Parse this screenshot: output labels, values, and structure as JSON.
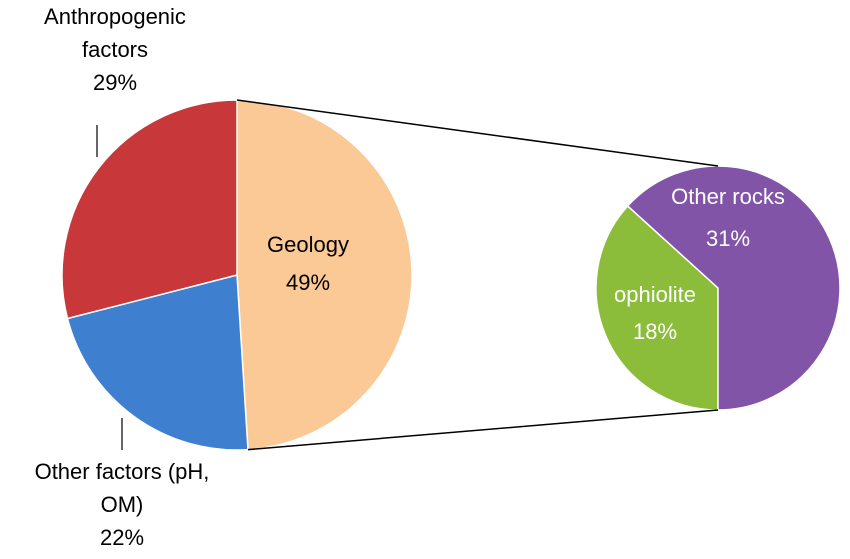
{
  "chart_data": {
    "type": "pie-of-pie",
    "categories": [
      "Geology",
      "Other factors (pH, OM)",
      "Anthropogenic factors"
    ],
    "values": [
      49,
      22,
      29
    ],
    "value_labels": [
      "49%",
      "22%",
      "29%"
    ],
    "colors": [
      "#fbc995",
      "#3f7fcf",
      "#c8373a"
    ],
    "secondary": {
      "categories": [
        "ophiolite",
        "Other rocks"
      ],
      "values": [
        18,
        31
      ],
      "value_labels": [
        "18%",
        "31%"
      ],
      "colors": [
        "#8bbd3a",
        "#8254a8"
      ]
    }
  }
}
